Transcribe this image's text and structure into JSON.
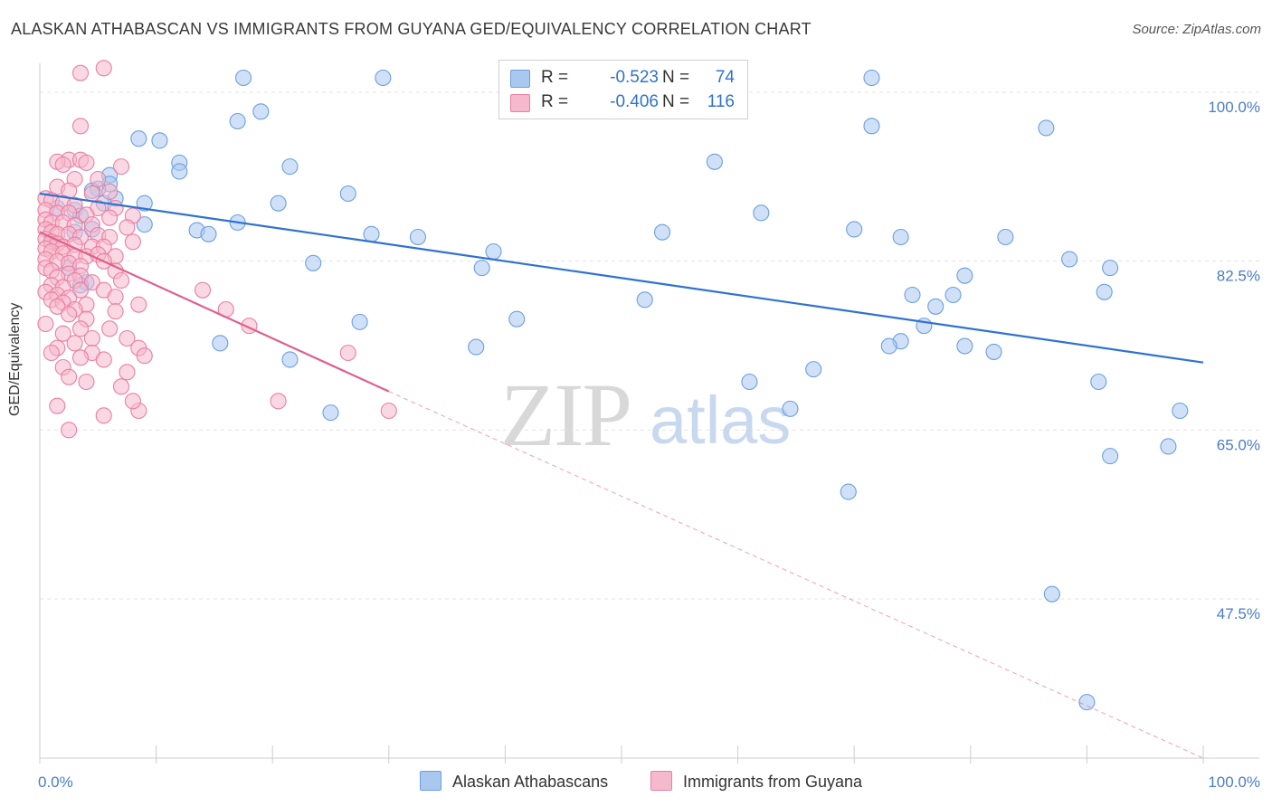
{
  "title": "ALASKAN ATHABASCAN VS IMMIGRANTS FROM GUYANA GED/EQUIVALENCY CORRELATION CHART",
  "source": "Source: ZipAtlas.com",
  "watermark": {
    "zip": "ZIP",
    "atlas": "atlas"
  },
  "stats_box": {
    "rows": [
      {
        "r_label": "R =",
        "r_value": "-0.523",
        "n_label": "N =",
        "n_value": "74",
        "color": "#a9c8f0"
      },
      {
        "r_label": "R =",
        "r_value": "-0.406",
        "n_label": "N =",
        "n_value": "116",
        "color": "#f6b8cc"
      }
    ]
  },
  "legend": {
    "items": [
      {
        "label": "Alaskan Athabascans",
        "color": "#a9c8f0"
      },
      {
        "label": "Immigrants from Guyana",
        "color": "#f6b8cc"
      }
    ]
  },
  "chart_data": {
    "type": "scatter",
    "ylabel": "GED/Equivalency",
    "xlim": [
      0,
      100
    ],
    "ylim": [
      31,
      103
    ],
    "y_ticks": [
      {
        "value": 100.0,
        "label": "100.0%"
      },
      {
        "value": 82.5,
        "label": "82.5%"
      },
      {
        "value": 65.0,
        "label": "65.0%"
      },
      {
        "value": 47.5,
        "label": "47.5%"
      }
    ],
    "x_tick_labels": [
      {
        "value": 0,
        "label": "0.0%"
      },
      {
        "value": 100,
        "label": "100.0%"
      }
    ],
    "grid": true,
    "colors": {
      "blue_fill": "#a9c8f0",
      "blue_stroke": "#6b9fe0",
      "blue_line": "#2f72d0",
      "pink_fill": "#f6b8cc",
      "pink_stroke": "#ea7fa0",
      "pink_line": "#e0608a"
    },
    "series": [
      {
        "name": "Alaskan Athabascans",
        "color": "blue",
        "trend": {
          "x0": 0,
          "y0": 89.5,
          "x1": 100,
          "y1": 72.0,
          "dashed_to": null
        },
        "points": [
          [
            17.5,
            101.5
          ],
          [
            29.5,
            101.5
          ],
          [
            71.5,
            101.5
          ],
          [
            19.0,
            98.0
          ],
          [
            17.0,
            97.0
          ],
          [
            71.5,
            96.5
          ],
          [
            86.5,
            96.3
          ],
          [
            8.5,
            95.2
          ],
          [
            10.3,
            95.0
          ],
          [
            12.0,
            92.7
          ],
          [
            21.5,
            92.3
          ],
          [
            58.0,
            92.8
          ],
          [
            12.0,
            91.8
          ],
          [
            6.0,
            91.4
          ],
          [
            6.0,
            90.5
          ],
          [
            5.0,
            90.0
          ],
          [
            4.5,
            89.8
          ],
          [
            26.5,
            89.5
          ],
          [
            6.5,
            89.0
          ],
          [
            9.0,
            88.5
          ],
          [
            20.5,
            88.5
          ],
          [
            1.5,
            88.0
          ],
          [
            3.0,
            87.8
          ],
          [
            62.0,
            87.5
          ],
          [
            3.5,
            87.2
          ],
          [
            9.0,
            86.3
          ],
          [
            17.0,
            86.5
          ],
          [
            13.5,
            85.7
          ],
          [
            4.5,
            85.8
          ],
          [
            53.5,
            85.5
          ],
          [
            70.0,
            85.8
          ],
          [
            3.0,
            85.5
          ],
          [
            14.5,
            85.3
          ],
          [
            28.5,
            85.3
          ],
          [
            32.5,
            85.0
          ],
          [
            74.0,
            85.0
          ],
          [
            83.0,
            85.0
          ],
          [
            1.0,
            84.5
          ],
          [
            39.0,
            83.5
          ],
          [
            23.5,
            82.3
          ],
          [
            88.5,
            82.7
          ],
          [
            38.0,
            81.8
          ],
          [
            92.0,
            81.8
          ],
          [
            79.5,
            81.0
          ],
          [
            2.5,
            81.8
          ],
          [
            4.0,
            80.3
          ],
          [
            91.5,
            79.3
          ],
          [
            75.0,
            79.0
          ],
          [
            78.5,
            79.0
          ],
          [
            52.0,
            78.5
          ],
          [
            27.5,
            76.2
          ],
          [
            41.0,
            76.5
          ],
          [
            77.0,
            77.8
          ],
          [
            76.0,
            75.8
          ],
          [
            15.5,
            74.0
          ],
          [
            37.5,
            73.6
          ],
          [
            74.0,
            74.2
          ],
          [
            73.0,
            73.7
          ],
          [
            79.5,
            73.7
          ],
          [
            82.0,
            73.1
          ],
          [
            21.5,
            72.3
          ],
          [
            66.5,
            71.3
          ],
          [
            61.0,
            70.0
          ],
          [
            91.0,
            70.0
          ],
          [
            64.5,
            67.2
          ],
          [
            25.0,
            66.8
          ],
          [
            98.0,
            67.0
          ],
          [
            97.0,
            63.3
          ],
          [
            92.0,
            62.3
          ],
          [
            69.5,
            58.6
          ],
          [
            87.0,
            48.0
          ],
          [
            90.0,
            36.8
          ],
          [
            3.5,
            80.0
          ],
          [
            5.5,
            88.5
          ]
        ]
      },
      {
        "name": "Immigrants from Guyana",
        "color": "pink",
        "trend": {
          "x0": 0,
          "y0": 85.5,
          "x1": 30,
          "y1": 69.0,
          "dashed_to": [
            100,
            31
          ]
        },
        "points": [
          [
            5.5,
            102.5
          ],
          [
            3.5,
            102.0
          ],
          [
            3.5,
            96.5
          ],
          [
            2.5,
            93.0
          ],
          [
            3.5,
            93.0
          ],
          [
            4.0,
            92.7
          ],
          [
            7.0,
            92.3
          ],
          [
            1.5,
            92.8
          ],
          [
            2.0,
            92.5
          ],
          [
            3.0,
            91.0
          ],
          [
            5.0,
            91.0
          ],
          [
            1.5,
            90.2
          ],
          [
            2.5,
            89.8
          ],
          [
            4.5,
            89.5
          ],
          [
            6.0,
            89.7
          ],
          [
            0.5,
            89.0
          ],
          [
            1.0,
            88.8
          ],
          [
            2.0,
            88.5
          ],
          [
            3.0,
            88.3
          ],
          [
            5.0,
            88.0
          ],
          [
            6.5,
            88.0
          ],
          [
            0.5,
            87.8
          ],
          [
            1.5,
            87.5
          ],
          [
            2.5,
            87.5
          ],
          [
            4.0,
            87.3
          ],
          [
            6.0,
            87.0
          ],
          [
            8.0,
            87.2
          ],
          [
            0.5,
            86.8
          ],
          [
            1.0,
            86.5
          ],
          [
            2.0,
            86.5
          ],
          [
            3.0,
            86.2
          ],
          [
            4.5,
            86.3
          ],
          [
            7.5,
            86.0
          ],
          [
            0.5,
            85.8
          ],
          [
            1.0,
            85.5
          ],
          [
            1.5,
            85.3
          ],
          [
            2.5,
            85.3
          ],
          [
            3.5,
            85.0
          ],
          [
            5.0,
            85.2
          ],
          [
            6.0,
            85.0
          ],
          [
            0.5,
            84.8
          ],
          [
            1.0,
            84.5
          ],
          [
            1.5,
            84.3
          ],
          [
            2.0,
            84.0
          ],
          [
            3.0,
            84.2
          ],
          [
            4.5,
            84.0
          ],
          [
            5.5,
            84.0
          ],
          [
            8.0,
            84.5
          ],
          [
            0.5,
            83.8
          ],
          [
            1.0,
            83.5
          ],
          [
            2.0,
            83.3
          ],
          [
            3.0,
            83.0
          ],
          [
            4.0,
            83.0
          ],
          [
            5.0,
            83.2
          ],
          [
            6.5,
            83.0
          ],
          [
            0.5,
            82.7
          ],
          [
            1.5,
            82.5
          ],
          [
            2.5,
            82.3
          ],
          [
            3.5,
            82.0
          ],
          [
            5.5,
            82.5
          ],
          [
            0.5,
            81.8
          ],
          [
            1.0,
            81.5
          ],
          [
            2.5,
            81.2
          ],
          [
            3.5,
            81.0
          ],
          [
            6.5,
            81.5
          ],
          [
            1.5,
            80.8
          ],
          [
            3.0,
            80.5
          ],
          [
            4.5,
            80.3
          ],
          [
            7.0,
            80.5
          ],
          [
            1.0,
            80.0
          ],
          [
            2.0,
            79.8
          ],
          [
            3.5,
            79.5
          ],
          [
            5.5,
            79.5
          ],
          [
            0.5,
            79.3
          ],
          [
            1.5,
            79.0
          ],
          [
            2.5,
            78.7
          ],
          [
            6.5,
            78.8
          ],
          [
            14.0,
            79.5
          ],
          [
            1.0,
            78.5
          ],
          [
            2.0,
            78.2
          ],
          [
            4.0,
            78.0
          ],
          [
            8.5,
            78.0
          ],
          [
            1.5,
            77.8
          ],
          [
            3.0,
            77.5
          ],
          [
            6.5,
            77.3
          ],
          [
            16.0,
            77.5
          ],
          [
            2.5,
            77.0
          ],
          [
            4.0,
            76.5
          ],
          [
            3.5,
            75.5
          ],
          [
            18.0,
            75.8
          ],
          [
            2.0,
            75.0
          ],
          [
            4.5,
            74.5
          ],
          [
            7.5,
            74.5
          ],
          [
            3.0,
            74.0
          ],
          [
            1.5,
            73.5
          ],
          [
            8.5,
            73.5
          ],
          [
            4.5,
            73.0
          ],
          [
            3.5,
            72.5
          ],
          [
            9.0,
            72.7
          ],
          [
            26.5,
            73.0
          ],
          [
            5.5,
            72.3
          ],
          [
            2.0,
            71.5
          ],
          [
            7.5,
            71.0
          ],
          [
            2.5,
            70.5
          ],
          [
            4.0,
            70.0
          ],
          [
            20.5,
            68.0
          ],
          [
            8.5,
            67.0
          ],
          [
            30.0,
            67.0
          ],
          [
            2.5,
            65.0
          ],
          [
            5.5,
            66.5
          ],
          [
            1.5,
            67.5
          ],
          [
            7.0,
            69.5
          ],
          [
            8.0,
            68.0
          ],
          [
            0.5,
            76.0
          ],
          [
            1.0,
            73.0
          ],
          [
            6.0,
            75.5
          ]
        ]
      }
    ]
  }
}
